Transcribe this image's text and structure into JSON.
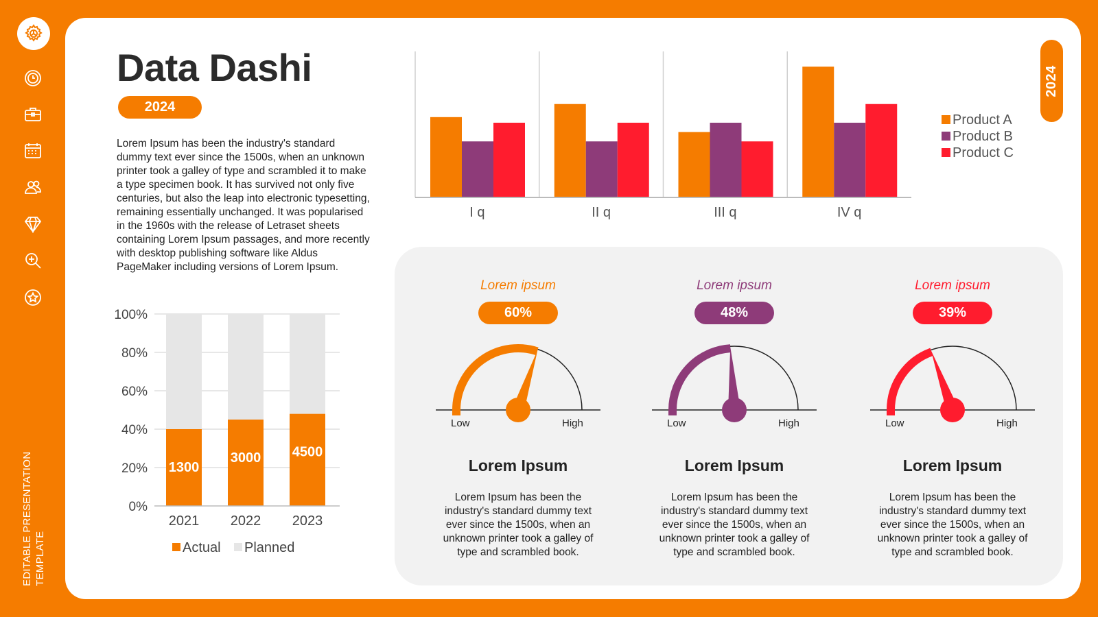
{
  "sidebar": {
    "icons": [
      "gear-icon",
      "clock-icon",
      "briefcase-icon",
      "calendar-icon",
      "users-icon",
      "diamond-icon",
      "zoom-icon",
      "star-icon"
    ],
    "vertical_label_line1": "EDITABLE PRESENTATION",
    "vertical_label_line2": "TEMPLATE"
  },
  "header": {
    "title": "Data Dashi",
    "year_pill": "2024",
    "year_tab": "2024"
  },
  "intro_text": "Lorem Ipsum has been the industry's standard dummy text ever since the 1500s, when an unknown printer took a galley of type and scrambled it to make a type specimen book. It has survived not only five centuries, but also the leap into electronic typesetting, remaining essentially unchanged. It was popularised in the 1960s with the release of Letraset sheets containing Lorem Ipsum passages, and more recently with desktop publishing software like Aldus PageMaker including versions of Lorem Ipsum.",
  "colors": {
    "accent": "#F57C00",
    "product_b": "#8E3B79",
    "product_c": "#FF1C2E",
    "planned": "#E6E6E6"
  },
  "chart_data": [
    {
      "type": "bar",
      "stacked": true,
      "categories": [
        "2021",
        "2022",
        "2023"
      ],
      "series": [
        {
          "name": "Actual",
          "values": [
            40,
            45,
            48
          ],
          "data_labels": [
            "1300",
            "3000",
            "4500"
          ],
          "color": "#F57C00"
        },
        {
          "name": "Planned",
          "values": [
            60,
            55,
            52
          ],
          "color": "#E6E6E6"
        }
      ],
      "yticks": [
        "0%",
        "20%",
        "40%",
        "60%",
        "80%",
        "100%"
      ],
      "ylim": [
        0,
        100
      ],
      "grid": true,
      "legend": "bottom"
    },
    {
      "type": "bar",
      "categories": [
        "I q",
        "II q",
        "III q",
        "IV q"
      ],
      "series": [
        {
          "name": "Product A",
          "values": [
            43,
            50,
            35,
            70
          ],
          "color": "#F57C00"
        },
        {
          "name": "Product B",
          "values": [
            30,
            30,
            40,
            40
          ],
          "color": "#8E3B79"
        },
        {
          "name": "Product C",
          "values": [
            40,
            40,
            30,
            50
          ],
          "color": "#FF1C2E"
        }
      ],
      "ylim": [
        0,
        80
      ],
      "grid": false,
      "legend": "right"
    }
  ],
  "gauges": [
    {
      "label": "Lorem ipsum",
      "percent_text": "60%",
      "value": 60,
      "color": "#F57C00",
      "low": "Low",
      "high": "High",
      "title": "Lorem Ipsum",
      "desc": "Lorem Ipsum has been the industry's standard dummy text ever since the 1500s, when an unknown printer took a galley of type and scrambled book."
    },
    {
      "label": "Lorem ipsum",
      "percent_text": "48%",
      "value": 48,
      "color": "#8E3B79",
      "low": "Low",
      "high": "High",
      "title": "Lorem Ipsum",
      "desc": "Lorem Ipsum has been the industry's standard dummy text ever since the 1500s, when an unknown printer took a galley of type and scrambled book."
    },
    {
      "label": "Lorem ipsum",
      "percent_text": "39%",
      "value": 39,
      "color": "#FF1C2E",
      "low": "Low",
      "high": "High",
      "title": "Lorem Ipsum",
      "desc": "Lorem Ipsum has been the industry's standard dummy text ever since the 1500s, when an unknown printer took a galley of type and scrambled book."
    }
  ]
}
